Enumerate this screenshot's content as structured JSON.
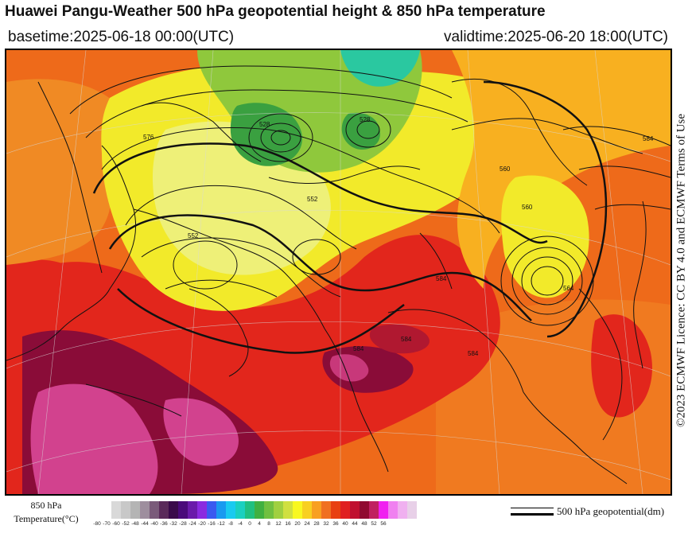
{
  "header": {
    "title": "Huawei Pangu-Weather 500 hPa geopotential height & 850 hPa temperature",
    "basetime": "basetime:2025-06-18 00:00(UTC)",
    "validtime": "validtime:2025-06-20 18:00(UTC)"
  },
  "license": "©2023 ECMWF Licence: CC BY 4.0 and ECMWF Terms of Use",
  "legend": {
    "temperature_label_line1": "850 hPa",
    "temperature_label_line2": "Temperature(°C)",
    "ticks": [
      "-80",
      "-70",
      "-60",
      "-52",
      "-48",
      "-44",
      "-40",
      "-36",
      "-32",
      "-28",
      "-24",
      "-20",
      "-16",
      "-12",
      "-8",
      "-4",
      "0",
      "4",
      "8",
      "12",
      "16",
      "20",
      "24",
      "28",
      "32",
      "36",
      "40",
      "44",
      "48",
      "52",
      "56"
    ],
    "colors": [
      "#d9d9d9",
      "#c8c8c8",
      "#b4b4b4",
      "#9e8e9e",
      "#7a5a7a",
      "#5a2a5a",
      "#3a0a4a",
      "#4a0a7a",
      "#6a1aaa",
      "#8a2ae0",
      "#3a5af0",
      "#1a9af0",
      "#1acaf0",
      "#1ad0c0",
      "#20c080",
      "#40b040",
      "#70c040",
      "#a0d040",
      "#d0e040",
      "#f8f820",
      "#f8d020",
      "#f8a020",
      "#f07020",
      "#e84010",
      "#e02020",
      "#c01030",
      "#900a30",
      "#c02060",
      "#f020f0",
      "#f080f0",
      "#f0b0f0",
      "#e8d0e8"
    ],
    "contour_label": "500 hPa geopotential(dm)"
  },
  "map": {
    "contour_labels": [
      "576",
      "552",
      "560",
      "584",
      "564",
      "528",
      "528",
      "552",
      "560",
      "584",
      "584",
      "584",
      "584"
    ],
    "colors": {
      "warm_orange": "#ee6a1a",
      "hot_red": "#e2261c",
      "very_hot": "#8a0c38",
      "extreme_pink": "#d2428e",
      "yellow": "#f2ea2a",
      "light_yellow": "#eef078",
      "green": "#8fc83c",
      "dark_green": "#3aa040",
      "teal": "#2ac8a0"
    }
  }
}
